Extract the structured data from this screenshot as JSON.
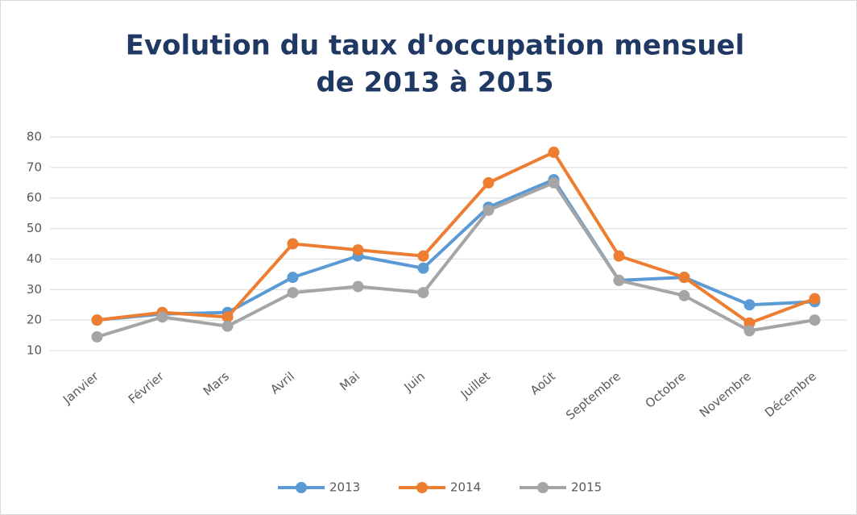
{
  "chart_data": {
    "type": "line",
    "title": "Evolution du taux d'occupation mensuel",
    "subtitle": "de 2013 à 2015",
    "categories": [
      "Janvier",
      "Février",
      "Mars",
      "Avril",
      "Mai",
      "Juin",
      "Juillet",
      "Août",
      "Septembre",
      "Octobre",
      "Novembre",
      "Décembre"
    ],
    "series": [
      {
        "name": "2013",
        "color": "#5b9bd5",
        "values": [
          20,
          22,
          22.5,
          34,
          41,
          37,
          57,
          66,
          33,
          34,
          25,
          26
        ]
      },
      {
        "name": "2014",
        "color": "#ed7d31",
        "values": [
          20,
          22.5,
          21,
          45,
          43,
          41,
          65,
          75,
          41,
          34,
          19,
          27
        ]
      },
      {
        "name": "2015",
        "color": "#a5a5a5",
        "values": [
          14.5,
          21,
          18,
          29,
          31,
          29,
          56,
          65,
          33,
          28,
          16.5,
          20
        ]
      }
    ],
    "ylim": [
      10,
      80
    ],
    "yticks": [
      10,
      20,
      30,
      40,
      50,
      60,
      70,
      80
    ],
    "grid": true,
    "legend": "bottom"
  }
}
